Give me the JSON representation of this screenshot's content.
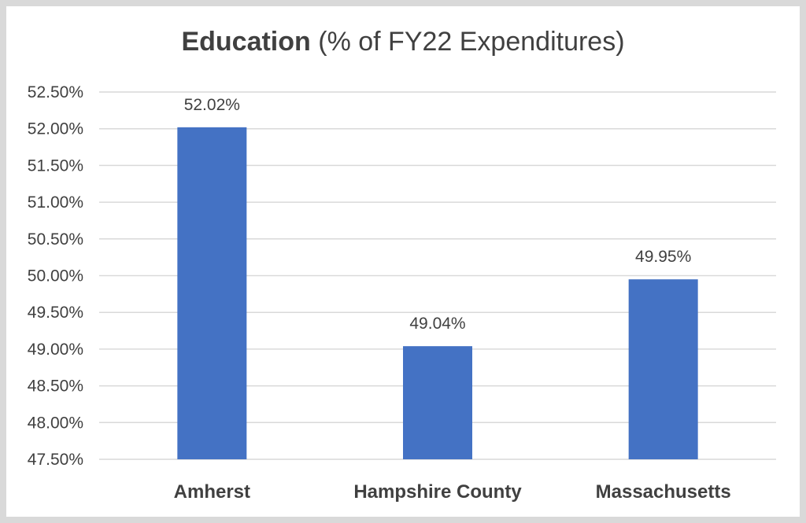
{
  "chart_data": {
    "type": "bar",
    "title_bold": "Education",
    "title_rest": " (% of FY22 Expenditures)",
    "categories": [
      "Amherst",
      "Hampshire County",
      "Massachusetts"
    ],
    "values": [
      52.02,
      49.04,
      49.95
    ],
    "data_labels": [
      "52.02%",
      "49.04%",
      "49.95%"
    ],
    "ylim": [
      47.5,
      52.5
    ],
    "yticks": [
      47.5,
      48.0,
      48.5,
      49.0,
      49.5,
      50.0,
      50.5,
      51.0,
      51.5,
      52.0,
      52.5
    ],
    "ytick_labels": [
      "47.50%",
      "48.00%",
      "48.50%",
      "49.00%",
      "49.50%",
      "50.00%",
      "50.50%",
      "51.00%",
      "51.50%",
      "52.00%",
      "52.50%"
    ],
    "bar_color": "#4472c4",
    "grid": true,
    "legend": "none"
  }
}
